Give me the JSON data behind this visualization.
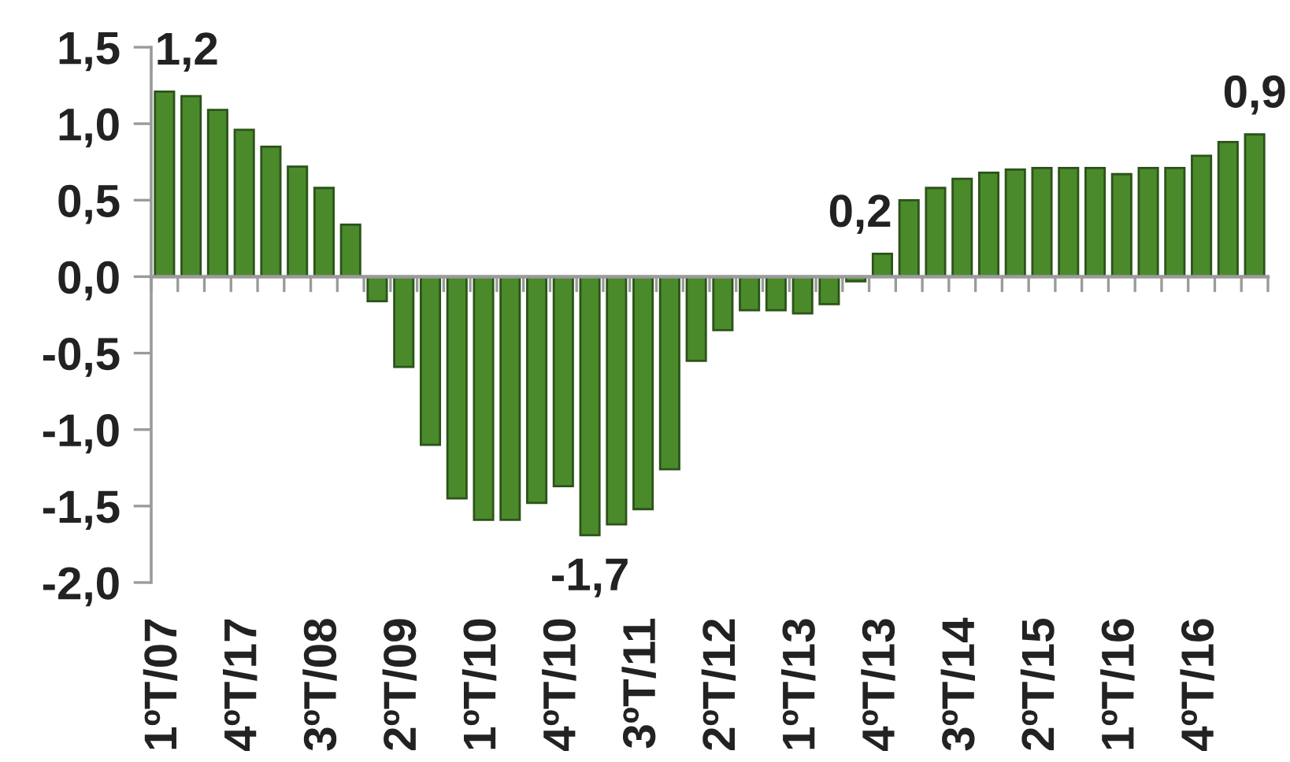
{
  "chart_data": {
    "type": "bar",
    "categories": [
      "1ºT/07",
      null,
      null,
      "4ºT/17",
      null,
      null,
      "3ºT/08",
      null,
      null,
      "2ºT/09",
      null,
      null,
      "1ºT/10",
      null,
      null,
      "4ºT/10",
      null,
      null,
      "3ºT/11",
      null,
      null,
      "2ºT/12",
      null,
      null,
      "1ºT/13",
      null,
      null,
      "4ºT/13",
      null,
      null,
      "3ºT/14",
      null,
      null,
      "2ºT/15",
      null,
      null,
      "1ºT/16",
      null,
      null,
      "4ºT/16",
      null,
      null
    ],
    "values": [
      1.21,
      1.18,
      1.09,
      0.96,
      0.85,
      0.72,
      0.58,
      0.34,
      -0.16,
      -0.59,
      -1.1,
      -1.45,
      -1.59,
      -1.59,
      -1.48,
      -1.37,
      -1.69,
      -1.62,
      -1.52,
      -1.26,
      -0.55,
      -0.35,
      -0.22,
      -0.22,
      -0.24,
      -0.18,
      -0.03,
      0.15,
      0.5,
      0.58,
      0.64,
      0.68,
      0.7,
      0.71,
      0.71,
      0.71,
      0.67,
      0.71,
      0.71,
      0.79,
      0.88,
      0.93
    ],
    "value_labels": [
      "1,2",
      null,
      null,
      null,
      null,
      null,
      null,
      null,
      null,
      null,
      null,
      null,
      null,
      null,
      null,
      null,
      "-1,7",
      null,
      null,
      null,
      null,
      null,
      null,
      null,
      null,
      null,
      null,
      "0,2",
      null,
      null,
      null,
      null,
      null,
      null,
      null,
      null,
      null,
      null,
      null,
      null,
      null,
      "0,9"
    ],
    "color": "#4a8a2b",
    "ylim": [
      -2.0,
      1.5
    ],
    "yticks": [
      {
        "value": -2.0,
        "label": "-2,0"
      },
      {
        "value": -1.5,
        "label": "-1,5"
      },
      {
        "value": -1.0,
        "label": "-1,0"
      },
      {
        "value": -0.5,
        "label": "-0,5"
      },
      {
        "value": 0.0,
        "label": "0,0"
      },
      {
        "value": 0.5,
        "label": "0,5"
      },
      {
        "value": 1.0,
        "label": "1,0"
      },
      {
        "value": 1.5,
        "label": "1,5"
      }
    ]
  }
}
